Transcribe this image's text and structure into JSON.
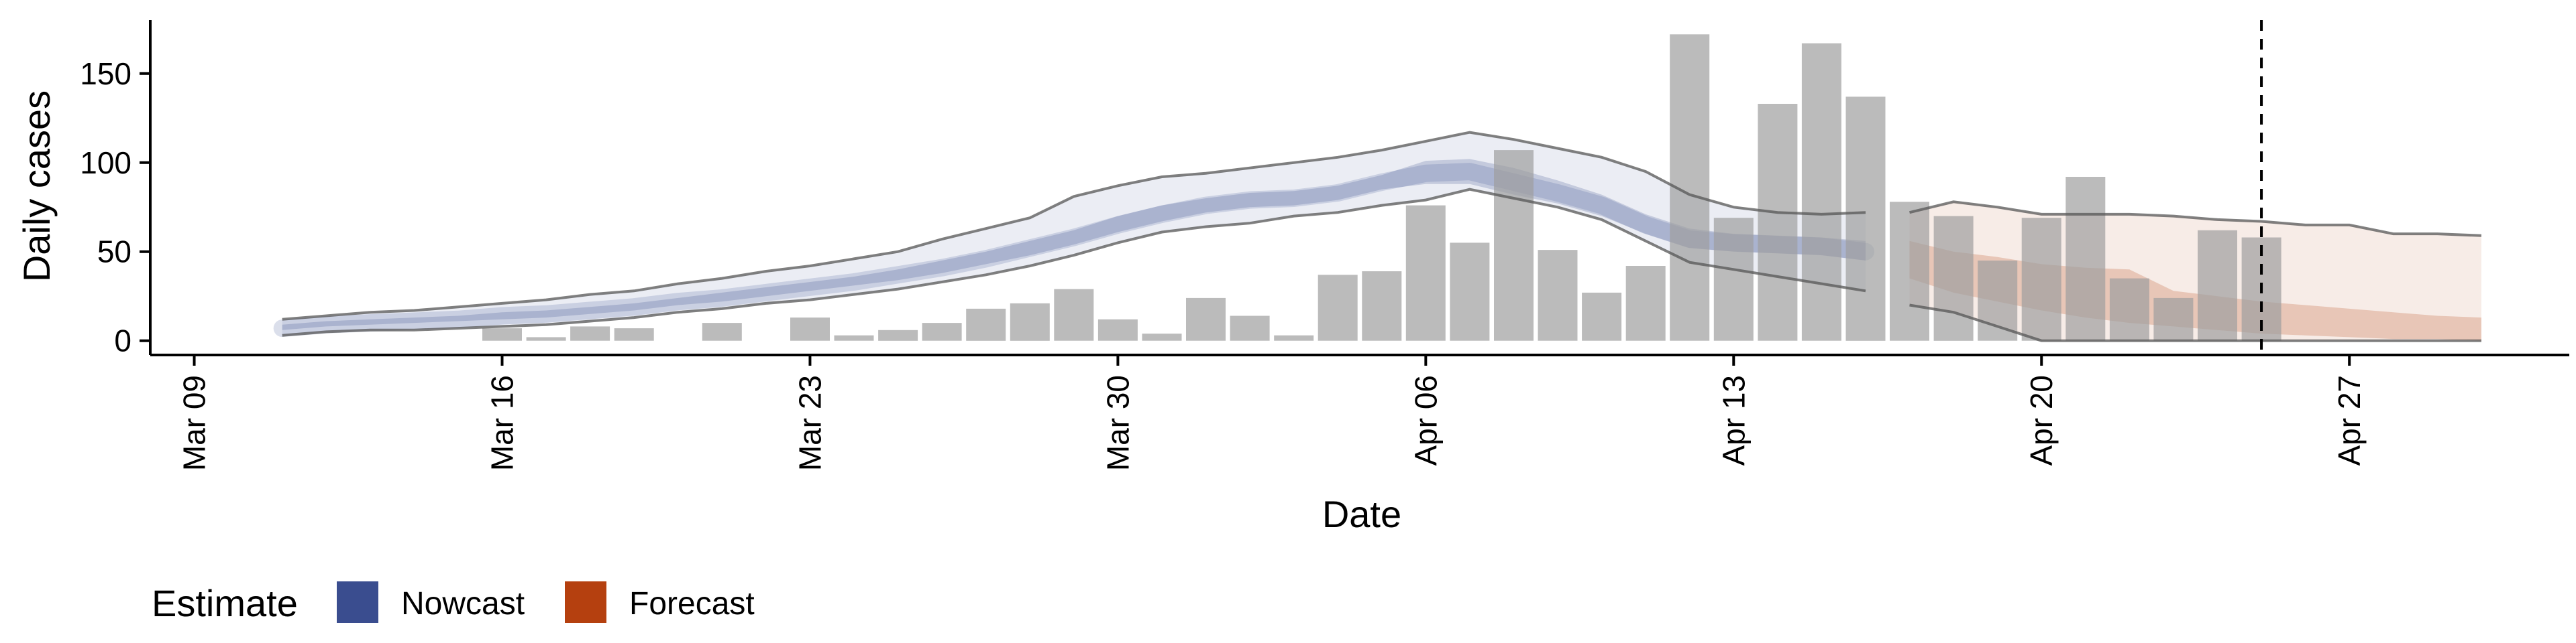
{
  "chart_data": {
    "type": "bar",
    "title": "",
    "xlabel": "Date",
    "ylabel": "Daily cases",
    "xlim": [
      "2020-03-08",
      "2020-05-02"
    ],
    "ylim": [
      -8,
      180
    ],
    "grid": false,
    "x_ticks": [
      "Mar 09",
      "Mar 16",
      "Mar 23",
      "Mar 30",
      "Apr 06",
      "Apr 13",
      "Apr 20",
      "Apr 27"
    ],
    "x_tick_dates": [
      "2020-03-09",
      "2020-03-16",
      "2020-03-23",
      "2020-03-30",
      "2020-04-06",
      "2020-04-13",
      "2020-04-20",
      "2020-04-27"
    ],
    "y_ticks": [
      0,
      50,
      100,
      150
    ],
    "vline_date": "2020-04-25",
    "legend": {
      "title": "Estimate",
      "placement": "bottom-left",
      "entries": [
        {
          "label": "Nowcast",
          "color": "#3a4d8f"
        },
        {
          "label": "Forecast",
          "color": "#b5400f"
        }
      ]
    },
    "bars": {
      "color": "#bdbdbd",
      "dates": [
        "2020-03-11",
        "2020-03-12",
        "2020-03-13",
        "2020-03-14",
        "2020-03-15",
        "2020-03-16",
        "2020-03-17",
        "2020-03-18",
        "2020-03-19",
        "2020-03-20",
        "2020-03-21",
        "2020-03-22",
        "2020-03-23",
        "2020-03-24",
        "2020-03-25",
        "2020-03-26",
        "2020-03-27",
        "2020-03-28",
        "2020-03-29",
        "2020-03-30",
        "2020-03-31",
        "2020-04-01",
        "2020-04-02",
        "2020-04-03",
        "2020-04-04",
        "2020-04-05",
        "2020-04-06",
        "2020-04-07",
        "2020-04-08",
        "2020-04-09",
        "2020-04-10",
        "2020-04-11",
        "2020-04-12",
        "2020-04-13",
        "2020-04-14",
        "2020-04-15",
        "2020-04-16",
        "2020-04-17",
        "2020-04-18",
        "2020-04-19",
        "2020-04-20",
        "2020-04-21",
        "2020-04-22",
        "2020-04-23",
        "2020-04-24",
        "2020-04-25",
        "2020-04-26",
        "2020-04-27",
        "2020-04-28",
        "2020-04-29"
      ],
      "values": [
        0,
        0,
        0,
        0,
        0,
        7,
        2,
        8,
        7,
        0,
        10,
        0,
        13,
        3,
        6,
        10,
        18,
        21,
        29,
        12,
        4,
        24,
        14,
        3,
        37,
        39,
        76,
        55,
        107,
        51,
        27,
        42,
        172,
        69,
        133,
        167,
        137,
        78,
        70,
        45,
        69,
        92,
        35,
        24,
        62,
        58,
        0,
        0,
        0,
        0
      ]
    },
    "series": [
      {
        "name": "Nowcast",
        "type": "interval",
        "color": "#3a4d8f",
        "dates": [
          "2020-03-11",
          "2020-03-12",
          "2020-03-13",
          "2020-03-14",
          "2020-03-15",
          "2020-03-16",
          "2020-03-17",
          "2020-03-18",
          "2020-03-19",
          "2020-03-20",
          "2020-03-21",
          "2020-03-22",
          "2020-03-23",
          "2020-03-24",
          "2020-03-25",
          "2020-03-26",
          "2020-03-27",
          "2020-03-28",
          "2020-03-29",
          "2020-03-30",
          "2020-03-31",
          "2020-04-01",
          "2020-04-02",
          "2020-04-03",
          "2020-04-04",
          "2020-04-05",
          "2020-04-06",
          "2020-04-07",
          "2020-04-08",
          "2020-04-09",
          "2020-04-10",
          "2020-04-11",
          "2020-04-12",
          "2020-04-13",
          "2020-04-14",
          "2020-04-15",
          "2020-04-16"
        ],
        "lower90": [
          3,
          5,
          6,
          6,
          7,
          8,
          9,
          11,
          13,
          16,
          18,
          21,
          23,
          26,
          29,
          33,
          37,
          42,
          48,
          55,
          61,
          64,
          66,
          70,
          72,
          76,
          79,
          85,
          80,
          75,
          68,
          56,
          44,
          40,
          36,
          32,
          28
        ],
        "lower50": [
          6,
          8,
          9,
          10,
          11,
          12,
          13,
          15,
          17,
          20,
          22,
          25,
          28,
          31,
          34,
          38,
          43,
          48,
          54,
          61,
          67,
          72,
          75,
          76,
          79,
          85,
          88,
          88,
          82,
          77,
          70,
          60,
          52,
          50,
          49,
          48,
          45
        ],
        "upper50": [
          9,
          11,
          12,
          13,
          14,
          16,
          17,
          19,
          21,
          24,
          27,
          30,
          33,
          36,
          40,
          45,
          50,
          56,
          62,
          70,
          76,
          80,
          83,
          84,
          87,
          93,
          101,
          102,
          97,
          90,
          82,
          71,
          63,
          60,
          59,
          58,
          56
        ],
        "upper90": [
          12,
          14,
          16,
          17,
          19,
          21,
          23,
          26,
          28,
          32,
          35,
          39,
          42,
          46,
          50,
          57,
          63,
          69,
          81,
          87,
          92,
          94,
          97,
          100,
          103,
          107,
          112,
          117,
          113,
          108,
          103,
          95,
          82,
          75,
          72,
          71,
          72
        ],
        "median": [
          7,
          9,
          10,
          11,
          12,
          14,
          15,
          17,
          19,
          22,
          24,
          27,
          30,
          33,
          37,
          41,
          46,
          52,
          58,
          65,
          71,
          76,
          79,
          80,
          83,
          89,
          94,
          95,
          89,
          83,
          76,
          65,
          57,
          55,
          54,
          53,
          50
        ]
      },
      {
        "name": "Forecast",
        "type": "interval",
        "color": "#b5400f",
        "dates": [
          "2020-04-17",
          "2020-04-18",
          "2020-04-19",
          "2020-04-20",
          "2020-04-21",
          "2020-04-22",
          "2020-04-23",
          "2020-04-24",
          "2020-04-25",
          "2020-04-26",
          "2020-04-27",
          "2020-04-28",
          "2020-04-29",
          "2020-04-30"
        ],
        "lower90": [
          20,
          16,
          8,
          0,
          0,
          0,
          0,
          0,
          0,
          0,
          0,
          0,
          0,
          0
        ],
        "lower50": [
          35,
          27,
          22,
          17,
          13,
          10,
          8,
          6,
          4,
          3,
          2,
          1,
          1,
          0
        ],
        "upper50": [
          56,
          50,
          47,
          43,
          41,
          40,
          28,
          25,
          22,
          20,
          18,
          16,
          14,
          13
        ],
        "upper90": [
          72,
          78,
          75,
          71,
          71,
          71,
          70,
          68,
          67,
          65,
          65,
          60,
          60,
          59
        ]
      }
    ]
  }
}
